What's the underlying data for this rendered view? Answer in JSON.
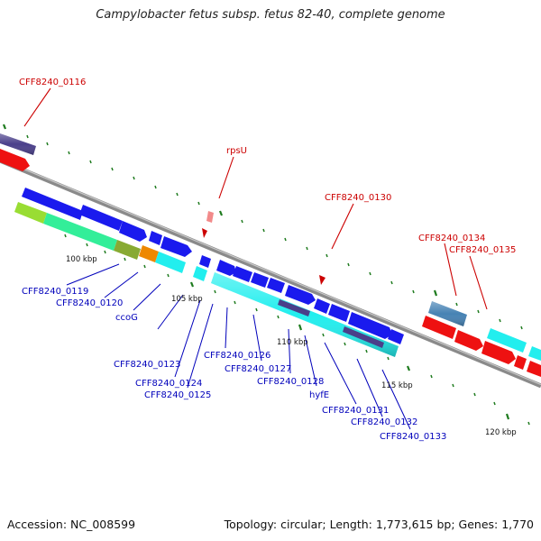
{
  "title": "Campylobacter fetus subsp. fetus 82-40, complete genome",
  "footer": {
    "accession": "Accession: NC_008599",
    "summary": "Topology: circular; Length: 1,773,615 bp; Genes: 1,770"
  },
  "scale_labels": [
    "100 kbp",
    "105 kbp",
    "110 kbp",
    "115 kbp",
    "120 kbp"
  ],
  "red_labels": [
    "CFF8240_0116",
    "rpsU",
    "CFF8240_0130",
    "CFF8240_0134",
    "CFF8240_0135"
  ],
  "blue_labels": [
    "CFF8240_0119",
    "CFF8240_0120",
    "ccoG",
    "CFF8240_0123",
    "CFF8240_0124",
    "CFF8240_0125",
    "CFF8240_0126",
    "CFF8240_0127",
    "CFF8240_0128",
    "hyfE",
    "CFF8240_0131",
    "CFF8240_0132",
    "CFF8240_0133"
  ],
  "colors": {
    "backbone": "#8a8a8a",
    "forward_cds": "#1a1aee",
    "reverse_cds": "#ee1111",
    "cyan_cds": "#22eeee",
    "green_cds": "#33ee99",
    "olive_cds": "#88aa33",
    "orange_cds": "#ee8800",
    "purple_cds": "#4a3f8a",
    "steel_cds": "#4682b4",
    "tick": "#1e7b1e",
    "red_label": "#cc0000",
    "blue_label": "#0000bb"
  }
}
